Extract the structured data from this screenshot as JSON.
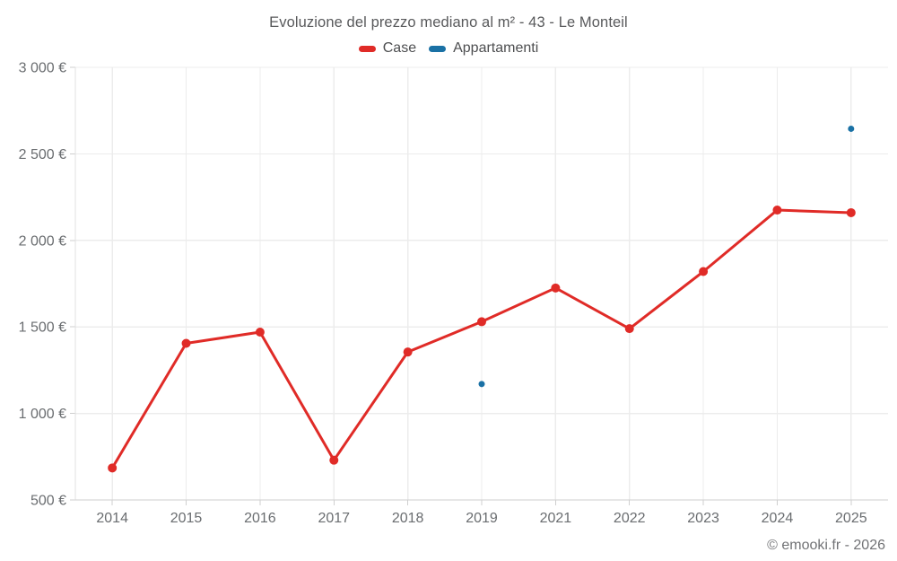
{
  "title": "Evoluzione del prezzo mediano al m² - 43 - Le Monteil",
  "legend": {
    "items": [
      {
        "label": "Case",
        "color": "#e02b27"
      },
      {
        "label": "Appartamenti",
        "color": "#1a71a5"
      }
    ]
  },
  "footer": "© emooki.fr - 2026",
  "chart_data": {
    "type": "line",
    "title": "Evoluzione del prezzo mediano al m² - 43 - Le Monteil",
    "categories": [
      "2014",
      "2015",
      "2016",
      "2017",
      "2018",
      "2019",
      "2021",
      "2022",
      "2023",
      "2024",
      "2025"
    ],
    "series": [
      {
        "name": "Case",
        "color": "#e02b27",
        "draw_line": true,
        "marker_radius": 5,
        "values": [
          685,
          1405,
          1470,
          730,
          1355,
          1530,
          1725,
          1490,
          1820,
          2175,
          2160
        ]
      },
      {
        "name": "Appartamenti",
        "color": "#1a71a5",
        "draw_line": false,
        "marker_radius": 3.5,
        "values": [
          null,
          null,
          null,
          null,
          null,
          1170,
          null,
          null,
          null,
          null,
          2645
        ]
      }
    ],
    "ylim": [
      500,
      3000
    ],
    "yticks": [
      {
        "value": 500,
        "label": "500 €"
      },
      {
        "value": 1000,
        "label": "1 000 €"
      },
      {
        "value": 1500,
        "label": "1 500 €"
      },
      {
        "value": 2000,
        "label": "2 000 €"
      },
      {
        "value": 2500,
        "label": "2 500 €"
      },
      {
        "value": 3000,
        "label": "3 000 €"
      }
    ],
    "xlabel": "",
    "ylabel": "",
    "grid": true,
    "legend_position": "top",
    "currency": "€"
  }
}
